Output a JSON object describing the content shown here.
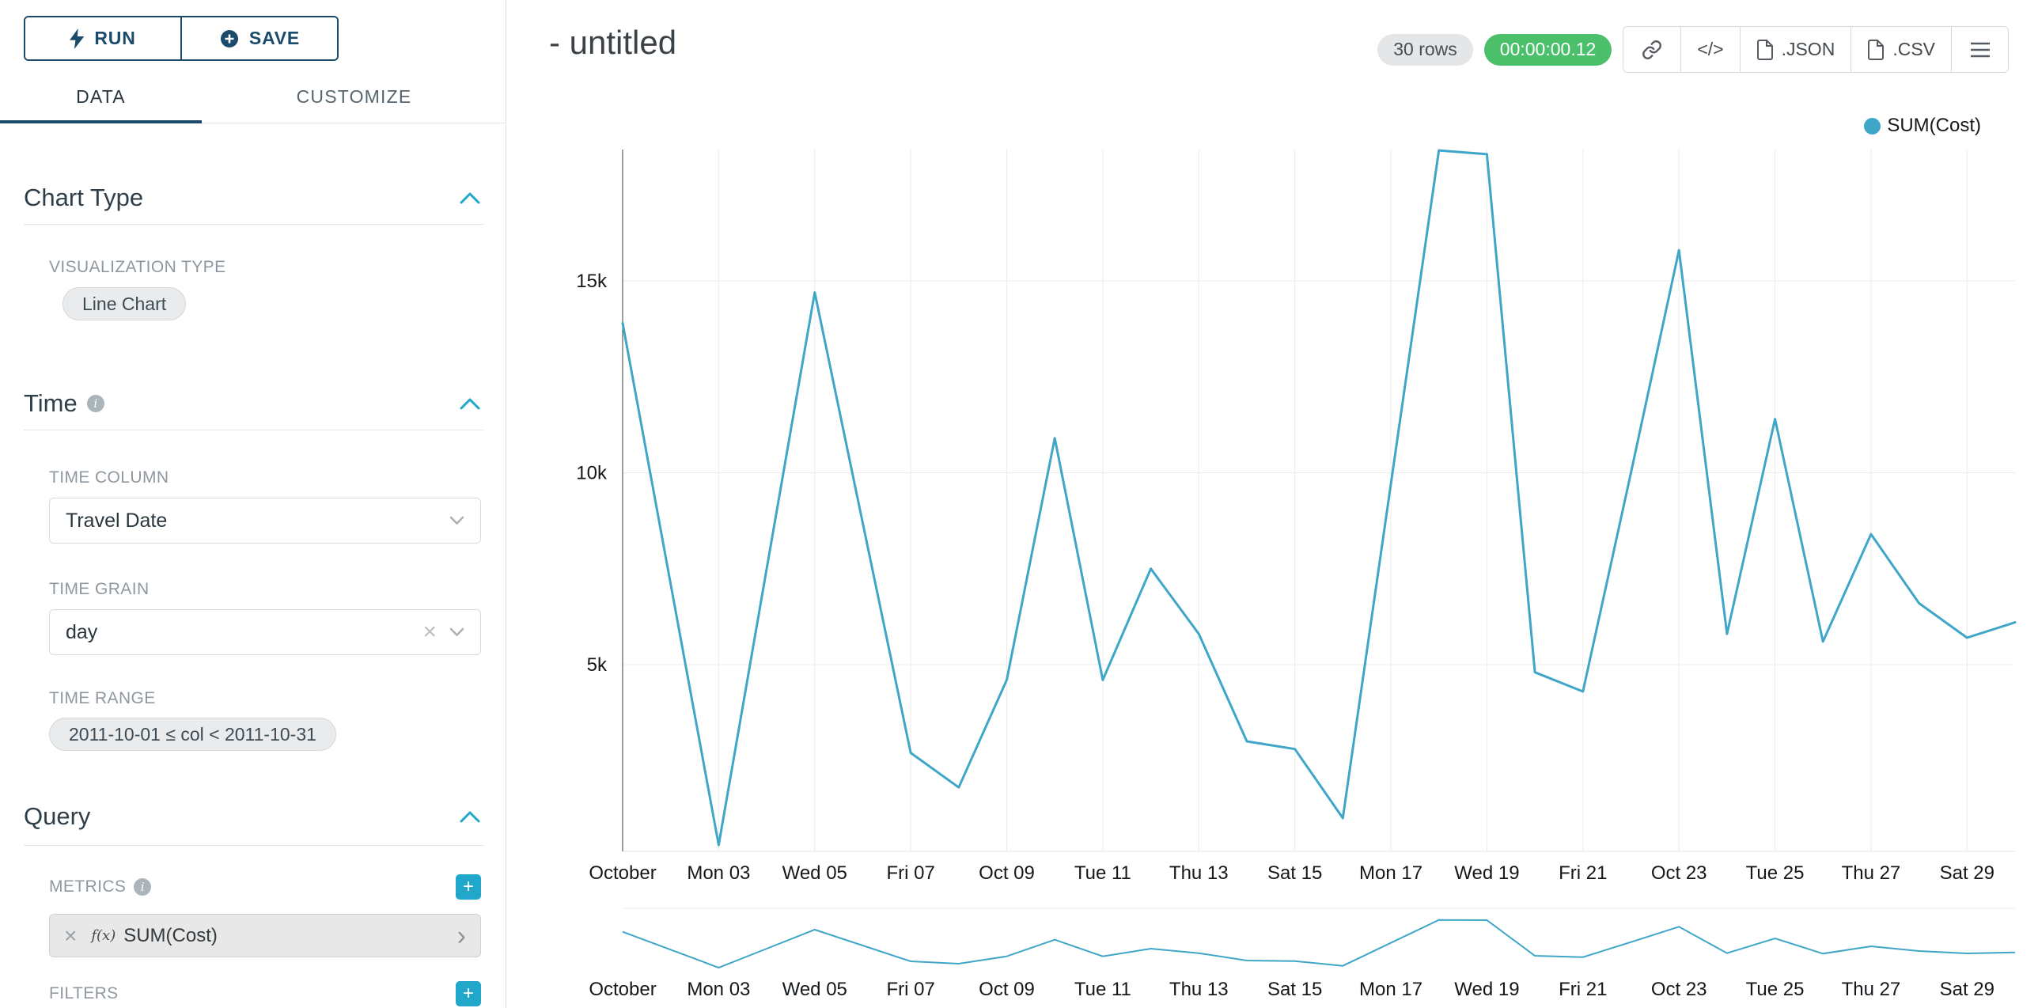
{
  "colors": {
    "accent_teal": "#20a7c9",
    "navy": "#1b4a6b",
    "green_badge": "#4cbf6b",
    "line": "#3fa6c8"
  },
  "sidebar": {
    "run_label": "RUN",
    "save_label": "SAVE",
    "tabs": [
      {
        "label": "DATA",
        "active": true
      },
      {
        "label": "CUSTOMIZE",
        "active": false
      }
    ],
    "chart_type": {
      "title": "Chart Type",
      "viz_type_label": "VISUALIZATION TYPE",
      "viz_type_value": "Line Chart"
    },
    "time": {
      "title": "Time",
      "column_label": "TIME COLUMN",
      "column_value": "Travel Date",
      "grain_label": "TIME GRAIN",
      "grain_value": "day",
      "range_label": "TIME RANGE",
      "range_value": "2011-10-01 ≤ col < 2011-10-31"
    },
    "query": {
      "title": "Query",
      "metrics_label": "METRICS",
      "metric_fx": "f(x)",
      "metric_value": "SUM(Cost)",
      "filters_label": "FILTERS",
      "add_label": "+",
      "clear_label": "×",
      "caret_label": "›"
    }
  },
  "header": {
    "title": "- untitled",
    "rows_badge": "30 rows",
    "timer_badge": "00:00:00.12",
    "code_button": "</>",
    "json_button": ".JSON",
    "csv_button": ".CSV"
  },
  "legend": {
    "label": "SUM(Cost)"
  },
  "chart_data": {
    "type": "line",
    "title": "- untitled",
    "x": [
      "2011-10-01",
      "2011-10-02",
      "2011-10-03",
      "2011-10-04",
      "2011-10-05",
      "2011-10-06",
      "2011-10-07",
      "2011-10-08",
      "2011-10-09",
      "2011-10-10",
      "2011-10-11",
      "2011-10-12",
      "2011-10-13",
      "2011-10-14",
      "2011-10-15",
      "2011-10-16",
      "2011-10-17",
      "2011-10-18",
      "2011-10-19",
      "2011-10-20",
      "2011-10-21",
      "2011-10-22",
      "2011-10-23",
      "2011-10-24",
      "2011-10-25",
      "2011-10-26",
      "2011-10-27",
      "2011-10-28",
      "2011-10-29",
      "2011-10-30"
    ],
    "series": [
      {
        "name": "SUM(Cost)",
        "values": [
          13900,
          7100,
          300,
          7500,
          14700,
          8700,
          2700,
          1800,
          4600,
          10900,
          4600,
          7500,
          5800,
          3000,
          2800,
          1000,
          9700,
          18400,
          18300,
          4800,
          4300,
          10000,
          15800,
          5800,
          11400,
          5600,
          8400,
          6600,
          5700,
          6100
        ]
      }
    ],
    "x_tick_labels": [
      "October",
      "Mon 03",
      "Wed 05",
      "Fri 07",
      "Oct 09",
      "Tue 11",
      "Thu 13",
      "Sat 15",
      "Mon 17",
      "Wed 19",
      "Fri 21",
      "Oct 23",
      "Tue 25",
      "Thu 27",
      "Sat 29"
    ],
    "y_ticks": [
      {
        "value": 15000,
        "label": "15k"
      },
      {
        "value": 10000,
        "label": "10k"
      },
      {
        "value": 5000,
        "label": "5k"
      }
    ],
    "ylim": [
      0,
      18600
    ],
    "xlabel": "",
    "ylabel": "",
    "grid": true,
    "legend": [
      "SUM(Cost)"
    ],
    "legend_position": "top-right",
    "line_color": "#3fa6c8",
    "has_range_brush": true
  }
}
